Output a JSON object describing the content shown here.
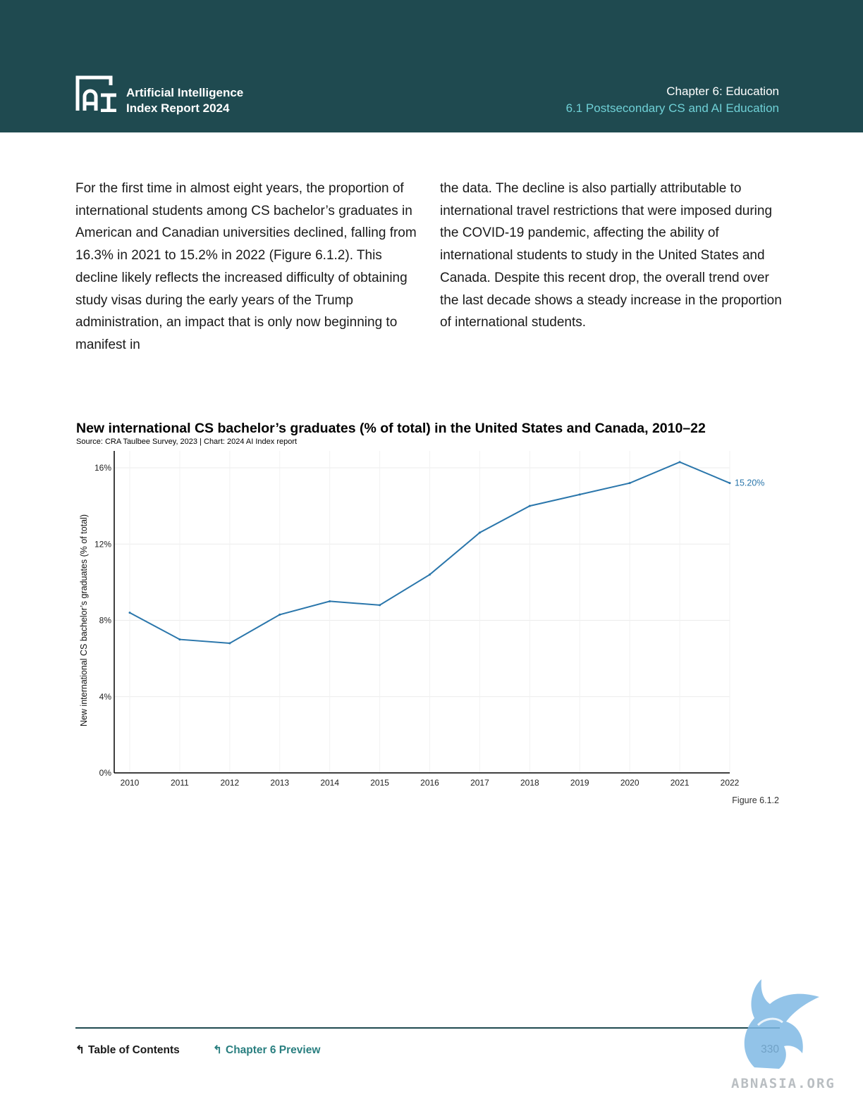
{
  "header": {
    "brand_line1": "Artificial Intelligence",
    "brand_line2": "Index Report 2024",
    "chapter": "Chapter 6: Education",
    "section": "6.1 Postsecondary CS and AI Education",
    "colors": {
      "background": "#1f4a50",
      "section_accent": "#6fd0d6"
    }
  },
  "body": {
    "left_column": "For the first time in almost eight years, the proportion of international students among CS bachelor’s graduates in American and Canadian universities declined, falling from 16.3% in 2021 to 15.2% in 2022 (Figure 6.1.2). This decline likely reflects the increased difficulty of obtaining study visas during the early years of the Trump administration, an impact that is only now beginning to manifest in",
    "right_column": "the data. The decline is also partially attributable to international travel restrictions that were imposed during the COVID-19 pandemic, affecting the ability of international students to study in the United States and Canada. Despite this recent drop, the overall trend over the last decade shows a steady increase in the proportion of international students."
  },
  "chart_data": {
    "type": "line",
    "title": "New international CS bachelor’s graduates (% of total) in the United States and Canada, 2010–22",
    "source": "Source: CRA Taulbee Survey, 2023 | Chart: 2024 AI Index report",
    "xlabel": "",
    "ylabel": "New international CS bachelor’s graduates (% of total)",
    "x": [
      "2010",
      "2011",
      "2012",
      "2013",
      "2014",
      "2015",
      "2016",
      "2017",
      "2018",
      "2019",
      "2020",
      "2021",
      "2022"
    ],
    "series": [
      {
        "values": [
          8.4,
          7.0,
          6.8,
          8.3,
          9.0,
          8.8,
          10.4,
          12.6,
          14.0,
          14.6,
          15.2,
          16.3,
          15.2
        ]
      }
    ],
    "ylim": [
      0,
      16
    ],
    "yticks": [
      0,
      4,
      8,
      12,
      16
    ],
    "ytick_labels": [
      "0%",
      "4%",
      "8%",
      "12%",
      "16%"
    ],
    "end_label": "15.20%",
    "grid": true,
    "line_color": "#2a76ab"
  },
  "figure_label": "Figure 6.1.2",
  "footer": {
    "toc": "Table of Contents",
    "chapter_preview": "Chapter 6 Preview",
    "page": "330",
    "arrow": "↰"
  },
  "watermark": {
    "text": "ABNASIA.ORG"
  }
}
